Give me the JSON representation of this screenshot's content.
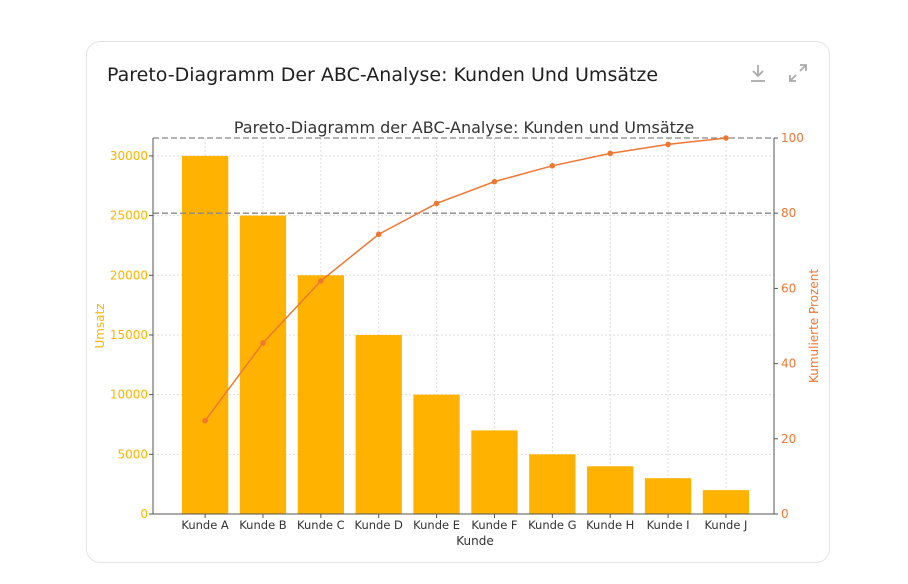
{
  "card": {
    "title": "Pareto-Diagramm Der ABC-Analyse: Kunden Und Umsätze"
  },
  "icons": {
    "download": "download-icon",
    "expand": "expand-icon"
  },
  "colors": {
    "bar": "#FFB300",
    "line": "#EE7733",
    "left_axis": "#FFB300",
    "right_axis": "#EE7733"
  },
  "chart_data": {
    "type": "bar+line",
    "title": "Pareto-Diagramm der ABC-Analyse: Kunden und Umsätze",
    "xlabel": "Kunde",
    "ylabel": "Umsatz",
    "y2label": "Kumulierte Prozent",
    "categories": [
      "Kunde A",
      "Kunde B",
      "Kunde C",
      "Kunde D",
      "Kunde E",
      "Kunde F",
      "Kunde G",
      "Kunde H",
      "Kunde I",
      "Kunde J"
    ],
    "series": [
      {
        "type": "bar",
        "axis": "left",
        "values": [
          30000,
          25000,
          20000,
          15000,
          10000,
          7000,
          5000,
          4000,
          3000,
          2000
        ]
      },
      {
        "type": "line",
        "axis": "right",
        "values": [
          24.8,
          45.5,
          62.0,
          74.4,
          82.6,
          88.4,
          92.6,
          95.9,
          98.3,
          100
        ]
      }
    ],
    "ylim": [
      0,
      31500
    ],
    "yticks": [
      0,
      5000,
      10000,
      15000,
      20000,
      25000,
      30000
    ],
    "y2lim": [
      0,
      100
    ],
    "y2ticks": [
      0,
      20,
      40,
      60,
      80,
      100
    ],
    "reference_lines_y2": [
      80,
      100
    ],
    "grid": true
  }
}
